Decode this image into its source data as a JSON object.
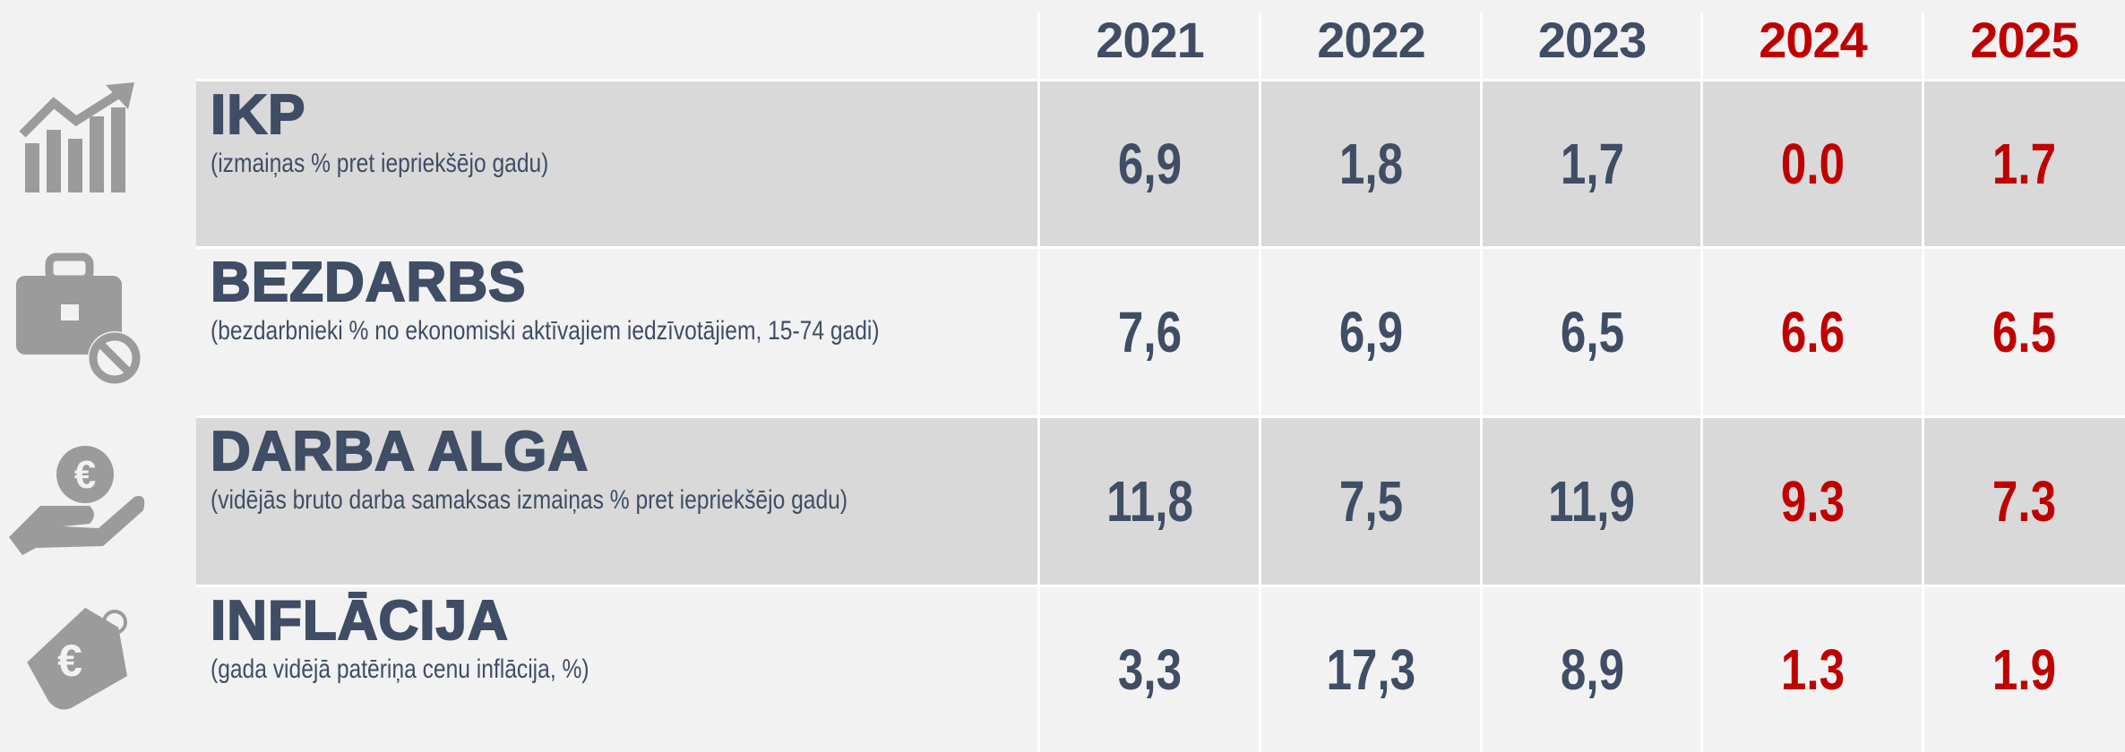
{
  "table": {
    "years": [
      "2021",
      "2022",
      "2023",
      "2024",
      "2025"
    ],
    "rows": [
      {
        "title": "IKP",
        "subtitle": "(izmaiņas % pret iepriekšējo gadu)",
        "values": [
          "6,9",
          "1,8",
          "1,7",
          "0.0",
          "1.7"
        ]
      },
      {
        "title": "BEZDARBS",
        "subtitle": "(bezdarbnieki % no ekonomiski aktīvajiem iedzīvotājiem, 15-74 gadi)",
        "values": [
          "7,6",
          "6,9",
          "6,5",
          "6.6",
          "6.5"
        ]
      },
      {
        "title": "DARBA ALGA",
        "subtitle": "(vidējās bruto darba samaksas izmaiņas % pret iepriekšējo gadu)",
        "values": [
          "11,8",
          "7,5",
          "11,9",
          "9.3",
          "7.3"
        ]
      },
      {
        "title": "INFLĀCIJA",
        "subtitle": "(gada vidējā patēriņa cenu inflācija, %)",
        "values": [
          "3,3",
          "17,3",
          "8,9",
          "1.3",
          "1.9"
        ]
      }
    ]
  }
}
